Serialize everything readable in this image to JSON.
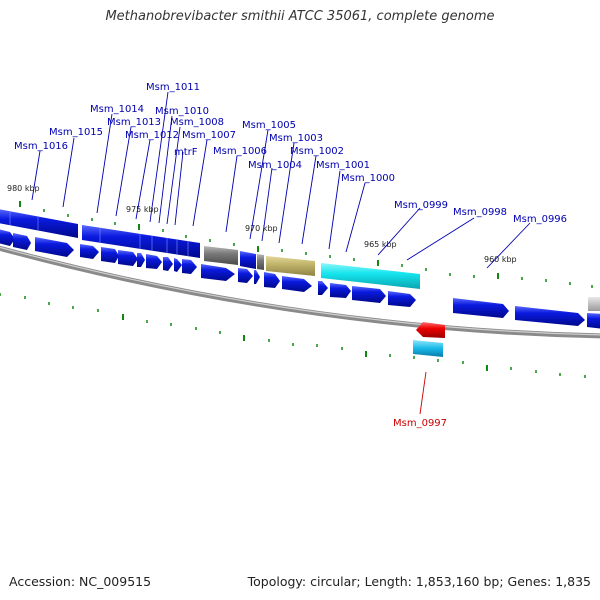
{
  "title": "Methanobrevibacter smithii ATCC 35061, complete genome",
  "footer": {
    "accession": "Accession: NC_009515",
    "summary": "Topology: circular; Length: 1,853,160 bp; Genes: 1,835"
  },
  "kbp_labels": [
    "980 kbp",
    "975 kbp",
    "970 kbp",
    "965 kbp",
    "960 kbp"
  ],
  "gene_labels": {
    "Msm_1016": "Msm_1016",
    "Msm_1015": "Msm_1015",
    "Msm_1014": "Msm_1014",
    "Msm_1013": "Msm_1013",
    "Msm_1012": "Msm_1012",
    "Msm_1011": "Msm_1011",
    "Msm_1010": "Msm_1010",
    "Msm_1008": "Msm_1008",
    "mtrF": "mtrF",
    "Msm_1007": "Msm_1007",
    "Msm_1006": "Msm_1006",
    "Msm_1005": "Msm_1005",
    "Msm_1004": "Msm_1004",
    "Msm_1003": "Msm_1003",
    "Msm_1002": "Msm_1002",
    "Msm_1001": "Msm_1001",
    "Msm_1000": "Msm_1000",
    "Msm_0999": "Msm_0999",
    "Msm_0998": "Msm_0998",
    "Msm_0997": "Msm_0997",
    "Msm_0996": "Msm_0996"
  },
  "colors": {
    "gene_blue": "#0a1adf",
    "cds_cyan": "#15e6ee",
    "olive": "#c2b56c",
    "gray_feature": "#7a7a7a",
    "red_feature": "#ee0000",
    "label_blue": "#0000b0",
    "label_red": "#cc0000",
    "tick_green": "#118811",
    "backbone": "#8a8a8a"
  }
}
